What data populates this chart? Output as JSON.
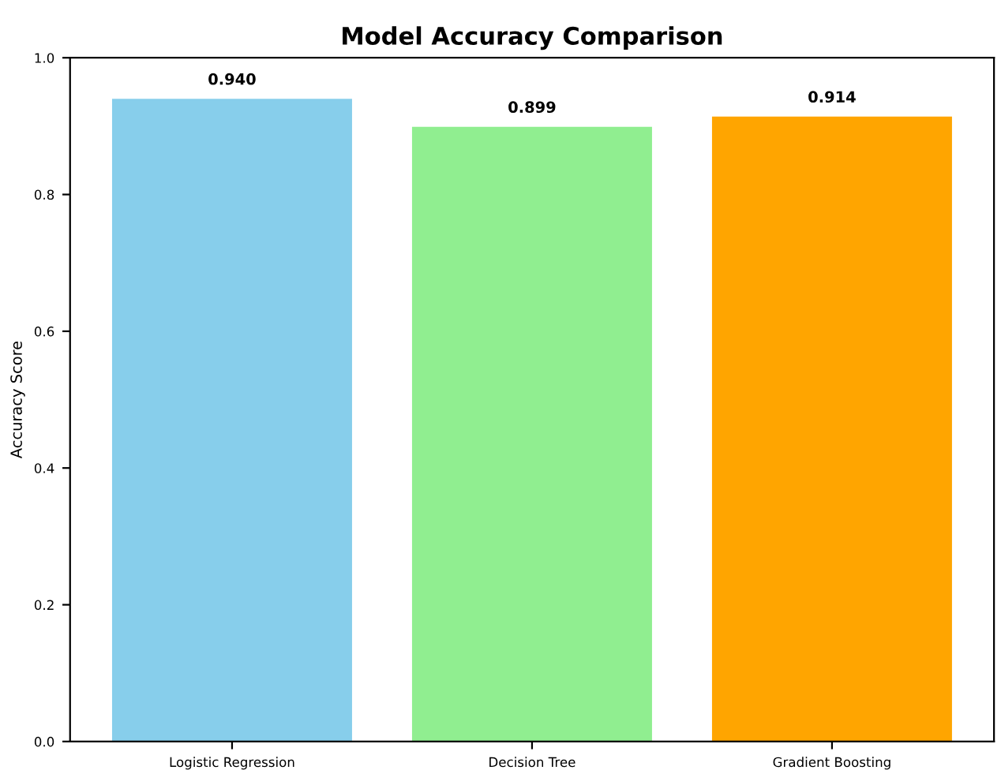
{
  "chart_data": {
    "type": "bar",
    "title": "Model Accuracy Comparison",
    "ylabel": "Accuracy Score",
    "categories": [
      "Logistic Regression",
      "Decision Tree",
      "Gradient Boosting"
    ],
    "values": [
      0.94,
      0.899,
      0.914
    ],
    "colors": [
      "#87ceeb",
      "#90ee90",
      "#ffa500"
    ],
    "value_labels": [
      "0.940",
      "0.899",
      "0.914"
    ],
    "ylim": [
      0,
      1.0
    ],
    "yticks": [
      {
        "value": 0,
        "label": "0.0"
      },
      0.2,
      0.4,
      0.6,
      0.8,
      {
        "value": 1,
        "label": "1.0"
      }
    ],
    "grid": false
  }
}
